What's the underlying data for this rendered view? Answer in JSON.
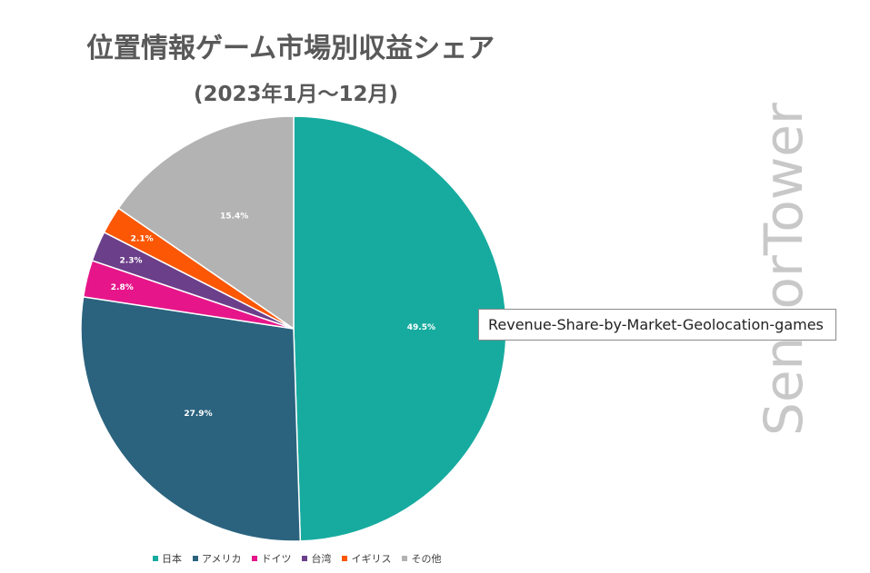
{
  "header": {
    "title": "位置情報ゲーム市場別収益シェア",
    "subtitle": "(2023年1月～12月)"
  },
  "watermark": {
    "text": "SensorTower"
  },
  "tooltip": {
    "text": "Revenue-Share-by-Market-Geolocation-games"
  },
  "chart_data": {
    "type": "pie",
    "title": "位置情報ゲーム市場別収益シェア",
    "subtitle": "(2023年1月～12月)",
    "legend_position": "bottom",
    "slices": [
      {
        "name": "日本",
        "value": 49.5,
        "label": "49.5%",
        "color": "#17ab9f"
      },
      {
        "name": "アメリカ",
        "value": 27.9,
        "label": "27.9%",
        "color": "#2b637f"
      },
      {
        "name": "ドイツ",
        "value": 2.8,
        "label": "2.8%",
        "color": "#e6168a"
      },
      {
        "name": "台湾",
        "value": 2.3,
        "label": "2.3%",
        "color": "#6b3f8a"
      },
      {
        "name": "イギリス",
        "value": 2.1,
        "label": "2.1%",
        "color": "#fb5705"
      },
      {
        "name": "その他",
        "value": 15.4,
        "label": "15.4%",
        "color": "#b3b3b3"
      }
    ]
  }
}
